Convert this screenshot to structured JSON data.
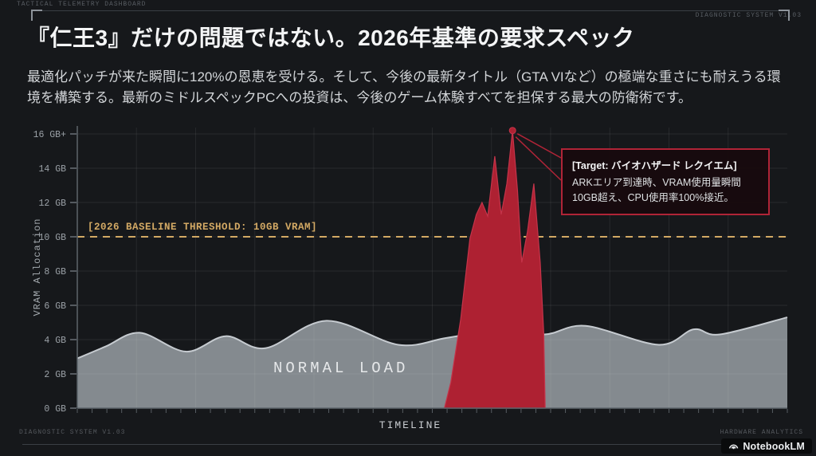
{
  "header": {
    "top_left": "TACTICAL TELEMETRY DASHBOARD",
    "top_right": "DIAGNOSTIC SYSTEM V1.03"
  },
  "title": "『仁王3』だけの問題ではない。2026年基準の要求スペック",
  "description": "最適化パッチが来た瞬間に120%の恩恵を受ける。そして、今後の最新タイトル（GTA VIなど）の極端な重さにも耐えうる環境を構築する。最新のミドルスペックPCへの投資は、今後のゲーム体験すべてを担保する最大の防衛術です。",
  "chart_data": {
    "type": "area",
    "xlabel": "TIMELINE",
    "ylabel": "VRAM Allocation",
    "ylim": [
      0,
      16
    ],
    "grid": true,
    "yticks": [
      {
        "gb": 16,
        "label": "16 GB+"
      },
      {
        "gb": 14,
        "label": "14 GB"
      },
      {
        "gb": 12,
        "label": "12 GB"
      },
      {
        "gb": 10,
        "label": "10 GB"
      },
      {
        "gb": 8,
        "label": "8 GB"
      },
      {
        "gb": 6,
        "label": "6 GB"
      },
      {
        "gb": 4,
        "label": "4 GB"
      },
      {
        "gb": 2,
        "label": "2 GB"
      },
      {
        "gb": 0,
        "label": "0 GB"
      }
    ],
    "threshold": {
      "value_gb": 10,
      "label": "[2026 BASELINE THRESHOLD: 10GB VRAM]",
      "color": "#d3a964"
    },
    "series": [
      {
        "name": "NORMAL LOAD",
        "style": "smooth",
        "fill": "#8a9096",
        "stroke": "#c6cbd0",
        "x": [
          0,
          4,
          8.8,
          15.3,
          20.9,
          26.5,
          35.1,
          45.2,
          52,
          58.7,
          65.8,
          71.6,
          81.9,
          86.8,
          90.5,
          100
        ],
        "gb": [
          2.9,
          3.6,
          4.4,
          3.3,
          4.2,
          3.5,
          5.1,
          3.7,
          4.1,
          4.5,
          4.3,
          4.8,
          3.7,
          4.6,
          4.3,
          5.3
        ]
      },
      {
        "name": "VRAM SPIKE",
        "style": "sharp",
        "fill": "#ae2132",
        "stroke": "#c5344a",
        "x": [
          51.7,
          52.6,
          54.0,
          55.3,
          56.2,
          57.0,
          57.8,
          58.8,
          59.7,
          60.5,
          61.3,
          62.0,
          62.6,
          63.4,
          64.3,
          65.2,
          65.7,
          65.9
        ],
        "gb": [
          0,
          1.5,
          5.2,
          9.9,
          11.3,
          12.0,
          11.2,
          14.7,
          11.3,
          13.1,
          16.2,
          12.7,
          8.5,
          10.3,
          13.1,
          8.5,
          4.3,
          0
        ]
      }
    ],
    "area_label": "NORMAL LOAD",
    "annotation": {
      "title": "[Target: バイオハザード レクイエム]",
      "body": "ARKエリア到達時、VRAM使用量瞬間10GB超え、CPU使用率100%接近。",
      "anchor": {
        "x": 61.3,
        "gb": 16.2
      }
    }
  },
  "footer": {
    "bottom_left": "DIAGNOSTIC SYSTEM V1.03",
    "bottom_right": "HARDWARE ANALYTICS",
    "badge_label": "NotebookLM"
  },
  "colors": {
    "background": "#16181b",
    "spike_red": "#ae2132",
    "normal_gray": "#8a9096",
    "threshold_amber": "#d3a964",
    "annotation_border": "#b02437",
    "axis_text": "#9ba1a7"
  }
}
